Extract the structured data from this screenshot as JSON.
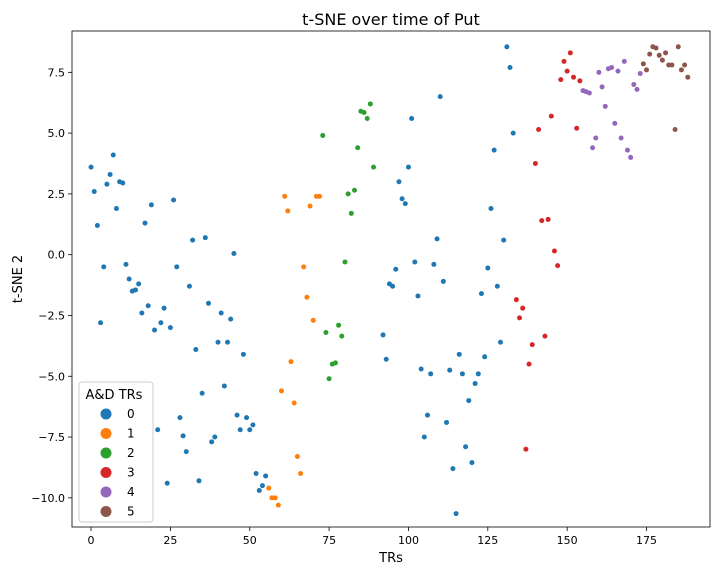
{
  "chart_data": {
    "type": "scatter",
    "title": "t-SNE over time of Put",
    "xlabel": "TRs",
    "ylabel": "t-SNE 2",
    "xlim": [
      -6,
      195
    ],
    "ylim": [
      -11.2,
      9.2
    ],
    "xticks": [
      0,
      25,
      50,
      75,
      100,
      125,
      150,
      175
    ],
    "yticks": [
      -10.0,
      -7.5,
      -5.0,
      -2.5,
      0.0,
      2.5,
      5.0,
      7.5
    ],
    "xtick_labels": [
      "0",
      "25",
      "50",
      "75",
      "100",
      "125",
      "150",
      "175"
    ],
    "ytick_labels": [
      "−10.0",
      "−7.5",
      "−5.0",
      "−2.5",
      "0.0",
      "2.5",
      "5.0",
      "7.5"
    ],
    "grid": false,
    "legend": {
      "title": "A&D TRs",
      "placement": "lower-left",
      "entries": [
        "0",
        "1",
        "2",
        "3",
        "4",
        "5"
      ]
    },
    "colors": [
      "#1f77b4",
      "#ff7f0e",
      "#2ca02c",
      "#d62728",
      "#9467bd",
      "#8c564b"
    ],
    "series": [
      {
        "name": "0",
        "points": [
          [
            0,
            3.6
          ],
          [
            1,
            2.6
          ],
          [
            2,
            1.2
          ],
          [
            3,
            -2.8
          ],
          [
            4,
            -0.5
          ],
          [
            5,
            2.9
          ],
          [
            6,
            3.3
          ],
          [
            7,
            4.1
          ],
          [
            8,
            1.9
          ],
          [
            9,
            3.0
          ],
          [
            10,
            2.95
          ],
          [
            11,
            -0.4
          ],
          [
            12,
            -1.0
          ],
          [
            13,
            -1.5
          ],
          [
            14,
            -1.45
          ],
          [
            15,
            -1.2
          ],
          [
            16,
            -2.4
          ],
          [
            17,
            1.3
          ],
          [
            18,
            -2.1
          ],
          [
            19,
            2.05
          ],
          [
            20,
            -3.1
          ],
          [
            21,
            -7.2
          ],
          [
            22,
            -2.8
          ],
          [
            23,
            -2.2
          ],
          [
            24,
            -9.4
          ],
          [
            25,
            -3.0
          ],
          [
            26,
            2.25
          ],
          [
            27,
            -0.5
          ],
          [
            28,
            -6.7
          ],
          [
            29,
            -7.45
          ],
          [
            30,
            -8.1
          ],
          [
            31,
            -1.3
          ],
          [
            32,
            0.6
          ],
          [
            33,
            -3.9
          ],
          [
            34,
            -9.3
          ],
          [
            35,
            -5.7
          ],
          [
            36,
            0.7
          ],
          [
            37,
            -2.0
          ],
          [
            38,
            -7.7
          ],
          [
            39,
            -7.5
          ],
          [
            40,
            -3.6
          ],
          [
            41,
            -2.4
          ],
          [
            42,
            -5.4
          ],
          [
            43,
            -3.6
          ],
          [
            44,
            -2.65
          ],
          [
            45,
            0.05
          ],
          [
            46,
            -6.6
          ],
          [
            47,
            -7.2
          ],
          [
            48,
            -4.1
          ],
          [
            49,
            -6.7
          ],
          [
            50,
            -7.2
          ],
          [
            51,
            -7.0
          ],
          [
            52,
            -9.0
          ],
          [
            53,
            -9.7
          ],
          [
            54,
            -9.5
          ],
          [
            55,
            -9.1
          ],
          [
            92,
            -3.3
          ],
          [
            93,
            -4.3
          ],
          [
            94,
            -1.2
          ],
          [
            95,
            -1.3
          ],
          [
            96,
            -0.6
          ],
          [
            97,
            3.0
          ],
          [
            98,
            2.3
          ],
          [
            99,
            2.1
          ],
          [
            100,
            3.6
          ],
          [
            101,
            5.6
          ],
          [
            102,
            -0.3
          ],
          [
            103,
            -1.7
          ],
          [
            104,
            -4.7
          ],
          [
            105,
            -7.5
          ],
          [
            106,
            -6.6
          ],
          [
            107,
            -4.9
          ],
          [
            108,
            -0.4
          ],
          [
            109,
            0.65
          ],
          [
            110,
            6.5
          ],
          [
            111,
            -1.1
          ],
          [
            112,
            -6.9
          ],
          [
            113,
            -4.75
          ],
          [
            114,
            -8.8
          ],
          [
            115,
            -10.65
          ],
          [
            116,
            -4.1
          ],
          [
            117,
            -4.9
          ],
          [
            118,
            -7.9
          ],
          [
            119,
            -6.0
          ],
          [
            120,
            -8.55
          ],
          [
            121,
            -5.3
          ],
          [
            122,
            -4.9
          ],
          [
            123,
            -1.6
          ],
          [
            124,
            -4.2
          ],
          [
            125,
            -0.55
          ],
          [
            126,
            1.9
          ],
          [
            127,
            4.3
          ],
          [
            128,
            -1.3
          ],
          [
            129,
            -3.6
          ],
          [
            130,
            0.6
          ],
          [
            131,
            8.55
          ],
          [
            132,
            7.7
          ],
          [
            133,
            5.0
          ]
        ]
      },
      {
        "name": "1",
        "points": [
          [
            56,
            -9.6
          ],
          [
            57,
            -10.0
          ],
          [
            58,
            -10.0
          ],
          [
            59,
            -10.3
          ],
          [
            60,
            -5.6
          ],
          [
            61,
            2.4
          ],
          [
            62,
            1.8
          ],
          [
            63,
            -4.4
          ],
          [
            64,
            -6.1
          ],
          [
            65,
            -8.3
          ],
          [
            66,
            -9.0
          ],
          [
            67,
            -0.5
          ],
          [
            68,
            -1.75
          ],
          [
            69,
            2.0
          ],
          [
            70,
            -2.7
          ],
          [
            71,
            2.4
          ],
          [
            72,
            2.4
          ]
        ]
      },
      {
        "name": "2",
        "points": [
          [
            73,
            4.9
          ],
          [
            74,
            -3.2
          ],
          [
            75,
            -5.1
          ],
          [
            76,
            -4.5
          ],
          [
            77,
            -4.45
          ],
          [
            78,
            -2.9
          ],
          [
            79,
            -3.35
          ],
          [
            80,
            -0.3
          ],
          [
            81,
            2.5
          ],
          [
            82,
            1.7
          ],
          [
            83,
            2.65
          ],
          [
            84,
            4.4
          ],
          [
            85,
            5.9
          ],
          [
            86,
            5.85
          ],
          [
            87,
            5.6
          ],
          [
            88,
            6.2
          ],
          [
            89,
            3.6
          ]
        ]
      },
      {
        "name": "3",
        "points": [
          [
            134,
            -1.85
          ],
          [
            135,
            -2.6
          ],
          [
            136,
            -2.2
          ],
          [
            137,
            -8.0
          ],
          [
            138,
            -4.5
          ],
          [
            139,
            -3.7
          ],
          [
            140,
            3.75
          ],
          [
            141,
            5.15
          ],
          [
            142,
            1.4
          ],
          [
            143,
            -3.35
          ],
          [
            144,
            1.45
          ],
          [
            145,
            5.7
          ],
          [
            146,
            0.15
          ],
          [
            147,
            -0.45
          ],
          [
            148,
            7.2
          ],
          [
            149,
            7.95
          ],
          [
            150,
            7.55
          ],
          [
            151,
            8.3
          ],
          [
            152,
            7.3
          ],
          [
            153,
            5.2
          ],
          [
            154,
            7.15
          ]
        ]
      },
      {
        "name": "4",
        "points": [
          [
            155,
            6.75
          ],
          [
            156,
            6.7
          ],
          [
            157,
            6.65
          ],
          [
            158,
            4.4
          ],
          [
            159,
            4.8
          ],
          [
            160,
            7.5
          ],
          [
            161,
            6.9
          ],
          [
            162,
            6.1
          ],
          [
            163,
            7.65
          ],
          [
            164,
            7.7
          ],
          [
            165,
            5.4
          ],
          [
            166,
            7.55
          ],
          [
            167,
            4.8
          ],
          [
            168,
            7.95
          ],
          [
            169,
            4.3
          ],
          [
            170,
            4.0
          ],
          [
            171,
            7.0
          ],
          [
            172,
            6.8
          ],
          [
            173,
            7.45
          ]
        ]
      },
      {
        "name": "5",
        "points": [
          [
            174,
            7.85
          ],
          [
            175,
            7.6
          ],
          [
            176,
            8.25
          ],
          [
            177,
            8.55
          ],
          [
            178,
            8.5
          ],
          [
            179,
            8.2
          ],
          [
            180,
            8.0
          ],
          [
            181,
            8.3
          ],
          [
            182,
            7.8
          ],
          [
            183,
            7.8
          ],
          [
            184,
            5.15
          ],
          [
            185,
            8.55
          ],
          [
            186,
            7.6
          ],
          [
            187,
            7.8
          ],
          [
            188,
            7.3
          ]
        ]
      }
    ]
  }
}
